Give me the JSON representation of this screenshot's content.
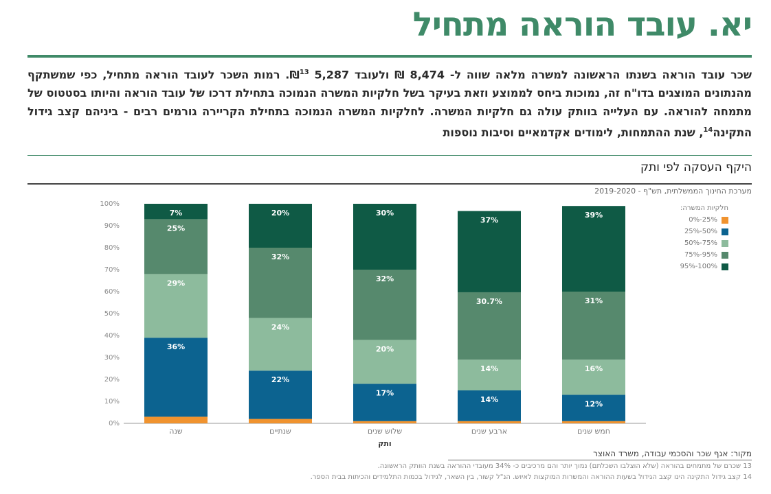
{
  "header": {
    "title": "יא. עובד הוראה מתחיל",
    "intro_part1": "שכר עובד הוראה בשנתו הראשונה למשרה מלאה שווה ל- 8,474 ₪ ולעובד 5,287 ₪",
    "intro_sup1": "13",
    "intro_part2": ". רמות השכר לעובד הוראה מתחיל, כפי שמשתקף מהנתונים המוצגים בדו\"ח זה, נמוכות ביחס לממוצע וזאת בעיקר בשל חלקיות המשרה הנמוכה בתחילת דרכו של עובד הוראה והיותו בסטטוס של מתמחה להוראה. עם העלייה בוותק עולה גם חלקיות המשרה. לחלקיות המשרה הנמוכה בתחילת הקריירה גורמים רבים - ביניהם קצב גידול התקינה",
    "intro_sup2": "14",
    "intro_part3": ", שנת ההתמחות, לימודים אקדמאיים וסיבות נוספות"
  },
  "chart_subtitle": "היקף העסקה לפי ותק",
  "chart_source_top": "מערכת החינוך הממשלתית, תש\"ף - 2019-2020",
  "legend_title": "חלקיות המשרה:",
  "chart_data": {
    "type": "bar",
    "stacked": true,
    "xlabel": "ותק",
    "ylabel": "",
    "ylim": [
      0,
      100
    ],
    "y_ticks": [
      "0%",
      "10%",
      "20%",
      "30%",
      "40%",
      "50%",
      "60%",
      "70%",
      "80%",
      "90%",
      "100%"
    ],
    "categories": [
      "שנה",
      "שנתיים",
      "שלוש שנים",
      "ארבע שנים",
      "חמש שנים"
    ],
    "series": [
      {
        "name": "0%-25%",
        "color": "#f0932f",
        "values": [
          3,
          2,
          1,
          1,
          1
        ],
        "labels": [
          "3%",
          "2%",
          "1%",
          "1%",
          "1%"
        ]
      },
      {
        "name": "25%-50%",
        "color": "#0c6390",
        "values": [
          36,
          22,
          17,
          14,
          12
        ],
        "labels": [
          "36%",
          "22%",
          "17%",
          "14%",
          "12%"
        ]
      },
      {
        "name": "50%-75%",
        "color": "#8dbb9d",
        "values": [
          29,
          24,
          20,
          14,
          16
        ],
        "labels": [
          "29%",
          "24%",
          "20%",
          "14%",
          "16%"
        ]
      },
      {
        "name": "75%-95%",
        "color": "#56896d",
        "values": [
          25,
          32,
          32,
          30.7,
          31
        ],
        "labels": [
          "25%",
          "32%",
          "32%",
          "30.7%",
          "31%"
        ]
      },
      {
        "name": "95%-100%",
        "color": "#0f5a45",
        "values": [
          7,
          20,
          30,
          37,
          39
        ],
        "labels": [
          "7%",
          "20%",
          "30%",
          "37%",
          "39%"
        ]
      }
    ],
    "grid": false,
    "legend_position": "right"
  },
  "footer": {
    "source": "מקור: אגף שכר והסכמי עבודה, משרד האוצר",
    "footnote13": "13 שכרם של מתמחים בהוראה (שלא הוצלבו השכלתם) נמוך יותר והם מרכיבים כ- 34% מעובדי ההוראה בשנת הוותק הראשונה.",
    "footnote14": "14 קצב גידול התקינה הינו קצב הגידול בשעות ההוראה והמשרות המוקצות לאיוש. הנ\"ל קשור, בין השאר, לגידול בכמות התלמידים והכיתות בבית הספר."
  }
}
